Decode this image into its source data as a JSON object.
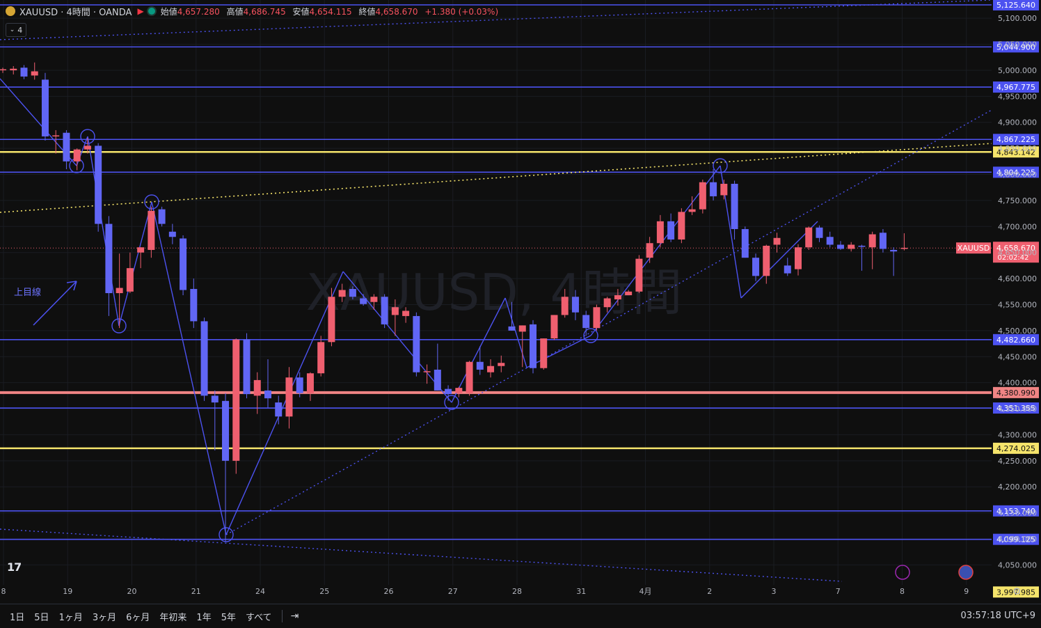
{
  "header": {
    "symbol_title": "XAUUSD · 4時間 · OANDA",
    "ohlc": [
      {
        "label": "始値",
        "value": "4,657.280"
      },
      {
        "label": "高値",
        "value": "4,686.745"
      },
      {
        "label": "安値",
        "value": "4,654.115"
      },
      {
        "label": "終値",
        "value": "4,658.670"
      }
    ],
    "change": "+1.380 (+0.03%)"
  },
  "indicator_toggle": "4",
  "watermark": "XAUUSD, 4時間",
  "annotation_text": "上目線",
  "timeframes": [
    "1日",
    "5日",
    "1ヶ月",
    "3ヶ月",
    "6ヶ月",
    "年初来",
    "1年",
    "5年",
    "すべて"
  ],
  "clock": "03:57:18 UTC+9",
  "colors": {
    "up": "#ef5f6f",
    "down": "#6166f5",
    "blue_line": "#4c52f0",
    "yellow_line": "#f5e46b",
    "red_line": "#f08484",
    "bg": "#0f0f0f"
  },
  "chart_data": {
    "type": "candlestick",
    "ylim": [
      3985,
      5135
    ],
    "y_ticks": [
      "4,050.000",
      "4,100.000",
      "4,150.000",
      "4,200.000",
      "4,250.000",
      "4,300.000",
      "4,350.000",
      "4,400.000",
      "4,450.000",
      "4,500.000",
      "4,550.000",
      "4,600.000",
      "4,650.000",
      "4,700.000",
      "4,750.000",
      "4,800.000",
      "4,850.000",
      "4,900.000",
      "4,950.000",
      "5,000.000",
      "5,050.000",
      "5,100.000"
    ],
    "x_ticks": [
      "8",
      "19",
      "20",
      "21",
      "24",
      "25",
      "26",
      "27",
      "28",
      "31",
      "4月",
      "2",
      "3",
      "7",
      "8",
      "9"
    ],
    "current_price": {
      "symbol": "XAUUSD",
      "price": "4,658.670",
      "countdown": "02:02:42"
    },
    "horizontal_levels": [
      {
        "value": 5125.64,
        "label": "5,125.640",
        "color": "blue"
      },
      {
        "value": 5044.9,
        "label": "5,044.900",
        "color": "blue"
      },
      {
        "value": 4967.775,
        "label": "4,967.775",
        "color": "blue"
      },
      {
        "value": 4867.225,
        "label": "4,867.225",
        "color": "blue"
      },
      {
        "value": 4843.142,
        "label": "4,843.142",
        "color": "yellow"
      },
      {
        "value": 4804.225,
        "label": "4,804.225",
        "color": "blue"
      },
      {
        "value": 4482.66,
        "label": "4,482.660",
        "color": "blue"
      },
      {
        "value": 4380.99,
        "label": "4,380.990",
        "color": "red"
      },
      {
        "value": 4351.355,
        "label": "4,351.355",
        "color": "blue"
      },
      {
        "value": 4274.025,
        "label": "4,274.025",
        "color": "yellow"
      },
      {
        "value": 4153.74,
        "label": "4,153.740",
        "color": "blue"
      },
      {
        "value": 4099.125,
        "label": "4,099.125",
        "color": "blue"
      },
      {
        "value": 3997.985,
        "label": "3,997.985",
        "color": "yellow"
      }
    ],
    "candles": [
      {
        "o": 5000,
        "h": 5005,
        "l": 4995,
        "c": 5002
      },
      {
        "o": 5000,
        "h": 5008,
        "l": 4992,
        "c": 5003
      },
      {
        "o": 5005,
        "h": 5010,
        "l": 4983,
        "c": 4988
      },
      {
        "o": 4990,
        "h": 5015,
        "l": 4982,
        "c": 4998
      },
      {
        "o": 4982,
        "h": 4995,
        "l": 4865,
        "c": 4873
      },
      {
        "o": 4873,
        "h": 4885,
        "l": 4840,
        "c": 4875
      },
      {
        "o": 4880,
        "h": 4885,
        "l": 4810,
        "c": 4825
      },
      {
        "o": 4825,
        "h": 4850,
        "l": 4808,
        "c": 4848
      },
      {
        "o": 4848,
        "h": 4870,
        "l": 4840,
        "c": 4855
      },
      {
        "o": 4855,
        "h": 4860,
        "l": 4690,
        "c": 4705
      },
      {
        "o": 4705,
        "h": 4720,
        "l": 4528,
        "c": 4572
      },
      {
        "o": 4572,
        "h": 4648,
        "l": 4505,
        "c": 4582
      },
      {
        "o": 4575,
        "h": 4650,
        "l": 4572,
        "c": 4620
      },
      {
        "o": 4650,
        "h": 4660,
        "l": 4620,
        "c": 4660
      },
      {
        "o": 4655,
        "h": 4738,
        "l": 4640,
        "c": 4730
      },
      {
        "o": 4733,
        "h": 4738,
        "l": 4700,
        "c": 4705
      },
      {
        "o": 4690,
        "h": 4705,
        "l": 4666,
        "c": 4680
      },
      {
        "o": 4677,
        "h": 4683,
        "l": 4568,
        "c": 4578
      },
      {
        "o": 4580,
        "h": 4600,
        "l": 4505,
        "c": 4518
      },
      {
        "o": 4518,
        "h": 4525,
        "l": 4365,
        "c": 4375
      },
      {
        "o": 4375,
        "h": 4385,
        "l": 4270,
        "c": 4362
      },
      {
        "o": 4365,
        "h": 4380,
        "l": 4094,
        "c": 4250
      },
      {
        "o": 4250,
        "h": 4485,
        "l": 4225,
        "c": 4483
      },
      {
        "o": 4483,
        "h": 4495,
        "l": 4370,
        "c": 4378
      },
      {
        "o": 4375,
        "h": 4420,
        "l": 4340,
        "c": 4405
      },
      {
        "o": 4385,
        "h": 4445,
        "l": 4352,
        "c": 4370
      },
      {
        "o": 4362,
        "h": 4375,
        "l": 4320,
        "c": 4335
      },
      {
        "o": 4335,
        "h": 4430,
        "l": 4312,
        "c": 4410
      },
      {
        "o": 4410,
        "h": 4420,
        "l": 4372,
        "c": 4380
      },
      {
        "o": 4380,
        "h": 4420,
        "l": 4365,
        "c": 4418
      },
      {
        "o": 4418,
        "h": 4490,
        "l": 4412,
        "c": 4478
      },
      {
        "o": 4478,
        "h": 4582,
        "l": 4470,
        "c": 4565
      },
      {
        "o": 4565,
        "h": 4590,
        "l": 4555,
        "c": 4578
      },
      {
        "o": 4580,
        "h": 4585,
        "l": 4560,
        "c": 4565
      },
      {
        "o": 4562,
        "h": 4570,
        "l": 4548,
        "c": 4551
      },
      {
        "o": 4555,
        "h": 4570,
        "l": 4540,
        "c": 4565
      },
      {
        "o": 4565,
        "h": 4570,
        "l": 4505,
        "c": 4512
      },
      {
        "o": 4530,
        "h": 4560,
        "l": 4490,
        "c": 4545
      },
      {
        "o": 4528,
        "h": 4545,
        "l": 4515,
        "c": 4538
      },
      {
        "o": 4528,
        "h": 4535,
        "l": 4412,
        "c": 4420
      },
      {
        "o": 4420,
        "h": 4435,
        "l": 4398,
        "c": 4422
      },
      {
        "o": 4425,
        "h": 4475,
        "l": 4385,
        "c": 4385
      },
      {
        "o": 4388,
        "h": 4395,
        "l": 4365,
        "c": 4378
      },
      {
        "o": 4380,
        "h": 4392,
        "l": 4372,
        "c": 4390
      },
      {
        "o": 4380,
        "h": 4442,
        "l": 4375,
        "c": 4440
      },
      {
        "o": 4440,
        "h": 4470,
        "l": 4415,
        "c": 4425
      },
      {
        "o": 4420,
        "h": 4445,
        "l": 4410,
        "c": 4432
      },
      {
        "o": 4432,
        "h": 4452,
        "l": 4420,
        "c": 4438
      },
      {
        "o": 4508,
        "h": 4555,
        "l": 4500,
        "c": 4500
      },
      {
        "o": 4498,
        "h": 4500,
        "l": 4430,
        "c": 4510
      },
      {
        "o": 4512,
        "h": 4520,
        "l": 4418,
        "c": 4428
      },
      {
        "o": 4428,
        "h": 4485,
        "l": 4425,
        "c": 4485
      },
      {
        "o": 4485,
        "h": 4530,
        "l": 4482,
        "c": 4530
      },
      {
        "o": 4530,
        "h": 4580,
        "l": 4525,
        "c": 4565
      },
      {
        "o": 4565,
        "h": 4578,
        "l": 4520,
        "c": 4535
      },
      {
        "o": 4530,
        "h": 4538,
        "l": 4490,
        "c": 4505
      },
      {
        "o": 4505,
        "h": 4550,
        "l": 4500,
        "c": 4545
      },
      {
        "o": 4545,
        "h": 4565,
        "l": 4535,
        "c": 4562
      },
      {
        "o": 4560,
        "h": 4580,
        "l": 4548,
        "c": 4568
      },
      {
        "o": 4568,
        "h": 4578,
        "l": 4570,
        "c": 4575
      },
      {
        "o": 4575,
        "h": 4645,
        "l": 4572,
        "c": 4638
      },
      {
        "o": 4640,
        "h": 4680,
        "l": 4630,
        "c": 4668
      },
      {
        "o": 4668,
        "h": 4722,
        "l": 4660,
        "c": 4710
      },
      {
        "o": 4710,
        "h": 4725,
        "l": 4670,
        "c": 4675
      },
      {
        "o": 4675,
        "h": 4735,
        "l": 4668,
        "c": 4728
      },
      {
        "o": 4728,
        "h": 4758,
        "l": 4722,
        "c": 4733
      },
      {
        "o": 4733,
        "h": 4790,
        "l": 4725,
        "c": 4785
      },
      {
        "o": 4785,
        "h": 4810,
        "l": 4750,
        "c": 4758
      },
      {
        "o": 4760,
        "h": 4790,
        "l": 4752,
        "c": 4782
      },
      {
        "o": 4782,
        "h": 4788,
        "l": 4675,
        "c": 4695
      },
      {
        "o": 4695,
        "h": 4700,
        "l": 4640,
        "c": 4640
      },
      {
        "o": 4640,
        "h": 4648,
        "l": 4595,
        "c": 4605
      },
      {
        "o": 4605,
        "h": 4665,
        "l": 4590,
        "c": 4663
      },
      {
        "o": 4665,
        "h": 4688,
        "l": 4650,
        "c": 4678
      },
      {
        "o": 4625,
        "h": 4640,
        "l": 4605,
        "c": 4610
      },
      {
        "o": 4618,
        "h": 4666,
        "l": 4606,
        "c": 4660
      },
      {
        "o": 4660,
        "h": 4700,
        "l": 4655,
        "c": 4698
      },
      {
        "o": 4698,
        "h": 4702,
        "l": 4670,
        "c": 4678
      },
      {
        "o": 4680,
        "h": 4690,
        "l": 4660,
        "c": 4665
      },
      {
        "o": 4665,
        "h": 4672,
        "l": 4655,
        "c": 4657
      },
      {
        "o": 4657,
        "h": 4670,
        "l": 4652,
        "c": 4665
      },
      {
        "o": 4663,
        "h": 4665,
        "l": 4615,
        "c": 4662
      },
      {
        "o": 4660,
        "h": 4690,
        "l": 4618,
        "c": 4685
      },
      {
        "o": 4688,
        "h": 4695,
        "l": 4650,
        "c": 4657
      },
      {
        "o": 4655,
        "h": 4660,
        "l": 4605,
        "c": 4652
      },
      {
        "o": 4657,
        "h": 4687,
        "l": 4654,
        "c": 4659
      }
    ]
  }
}
